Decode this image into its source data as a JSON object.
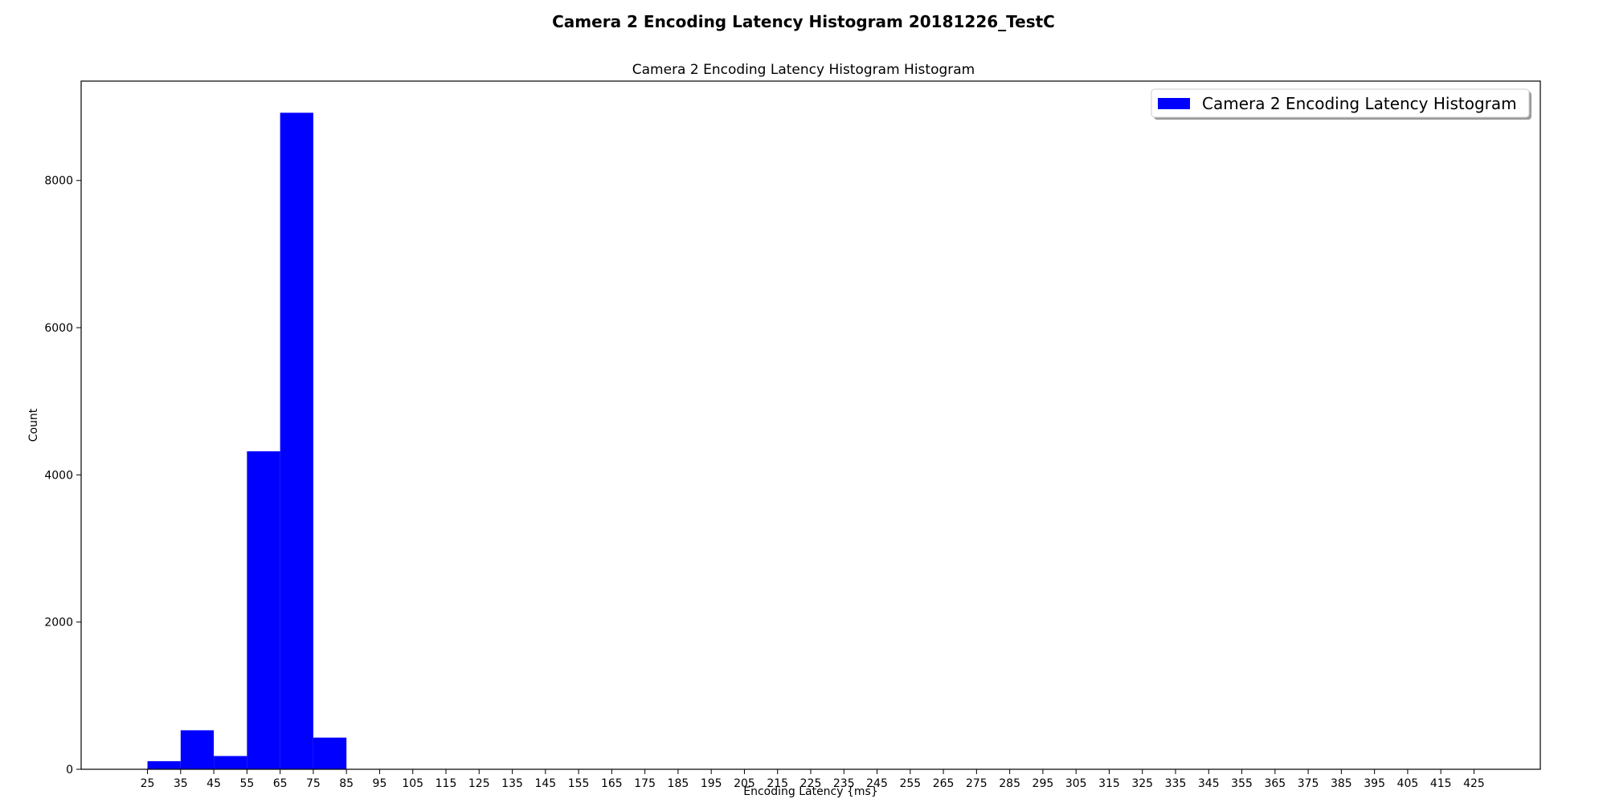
{
  "chart_data": {
    "type": "bar",
    "suptitle": "Camera 2 Encoding Latency Histogram 20181226_TestC",
    "title": "Camera 2 Encoding Latency Histogram Histogram",
    "xlabel": "Encoding Latency {ms}",
    "ylabel": "Count",
    "xlim": [
      5,
      445
    ],
    "ylim": [
      0,
      9350
    ],
    "xticks": [
      25,
      35,
      45,
      55,
      65,
      75,
      85,
      95,
      105,
      115,
      125,
      135,
      145,
      155,
      165,
      175,
      185,
      195,
      205,
      215,
      225,
      235,
      245,
      255,
      265,
      275,
      285,
      295,
      305,
      315,
      325,
      335,
      345,
      355,
      365,
      375,
      385,
      395,
      405,
      415,
      425
    ],
    "yticks": [
      0,
      2000,
      4000,
      6000,
      8000
    ],
    "bin_edges": [
      25,
      35,
      45,
      55,
      65,
      75,
      85,
      95,
      105,
      115,
      125,
      135,
      145,
      155,
      165,
      175,
      185,
      195,
      205,
      215,
      225,
      235,
      245,
      255,
      265,
      275,
      285,
      295,
      305,
      315,
      325,
      335,
      345,
      355,
      365,
      375,
      385,
      395,
      405,
      415,
      425
    ],
    "series": [
      {
        "name": "Camera 2 Encoding Latency Histogram",
        "color": "#0000ff",
        "values": [
          110,
          530,
          180,
          4320,
          8920,
          430,
          0,
          0,
          0,
          0,
          0,
          0,
          0,
          0,
          0,
          0,
          0,
          0,
          0,
          0,
          0,
          0,
          0,
          0,
          0,
          0,
          0,
          0,
          0,
          0,
          0,
          0,
          0,
          0,
          0,
          0,
          0,
          0,
          0,
          0
        ]
      }
    ],
    "legend": {
      "position": "top-right"
    },
    "grid": false
  }
}
